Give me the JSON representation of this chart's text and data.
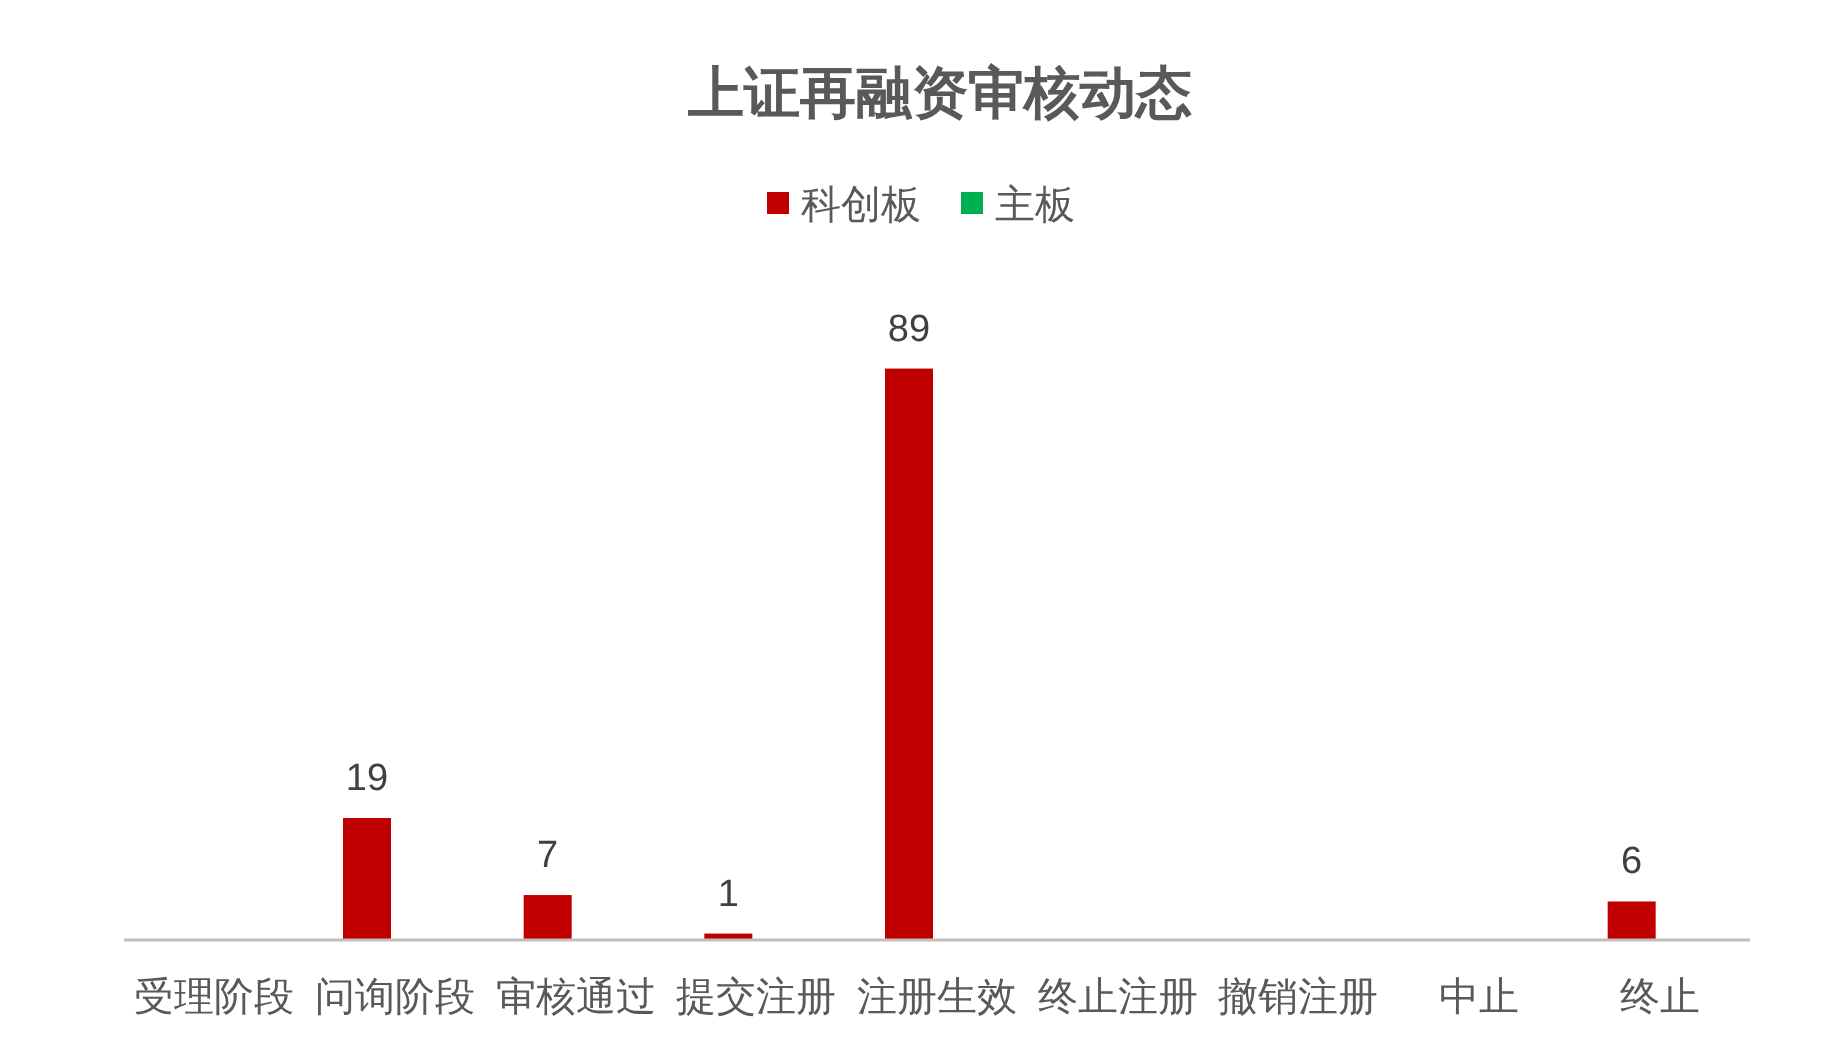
{
  "chart_data": {
    "type": "bar",
    "title": "上证再融资审核动态",
    "categories": [
      "受理阶段",
      "问询阶段",
      "审核通过",
      "提交注册",
      "注册生效",
      "终止注册",
      "撤销注册",
      "中止",
      "终止"
    ],
    "series": [
      {
        "name": "科创板",
        "color": "#c00000",
        "values": [
          null,
          19,
          7,
          1,
          89,
          null,
          null,
          null,
          6
        ]
      },
      {
        "name": "主板",
        "color": "#00b050",
        "values": [
          null,
          null,
          null,
          null,
          null,
          null,
          null,
          null,
          null
        ]
      }
    ],
    "data_labels": true,
    "legend": "top"
  }
}
